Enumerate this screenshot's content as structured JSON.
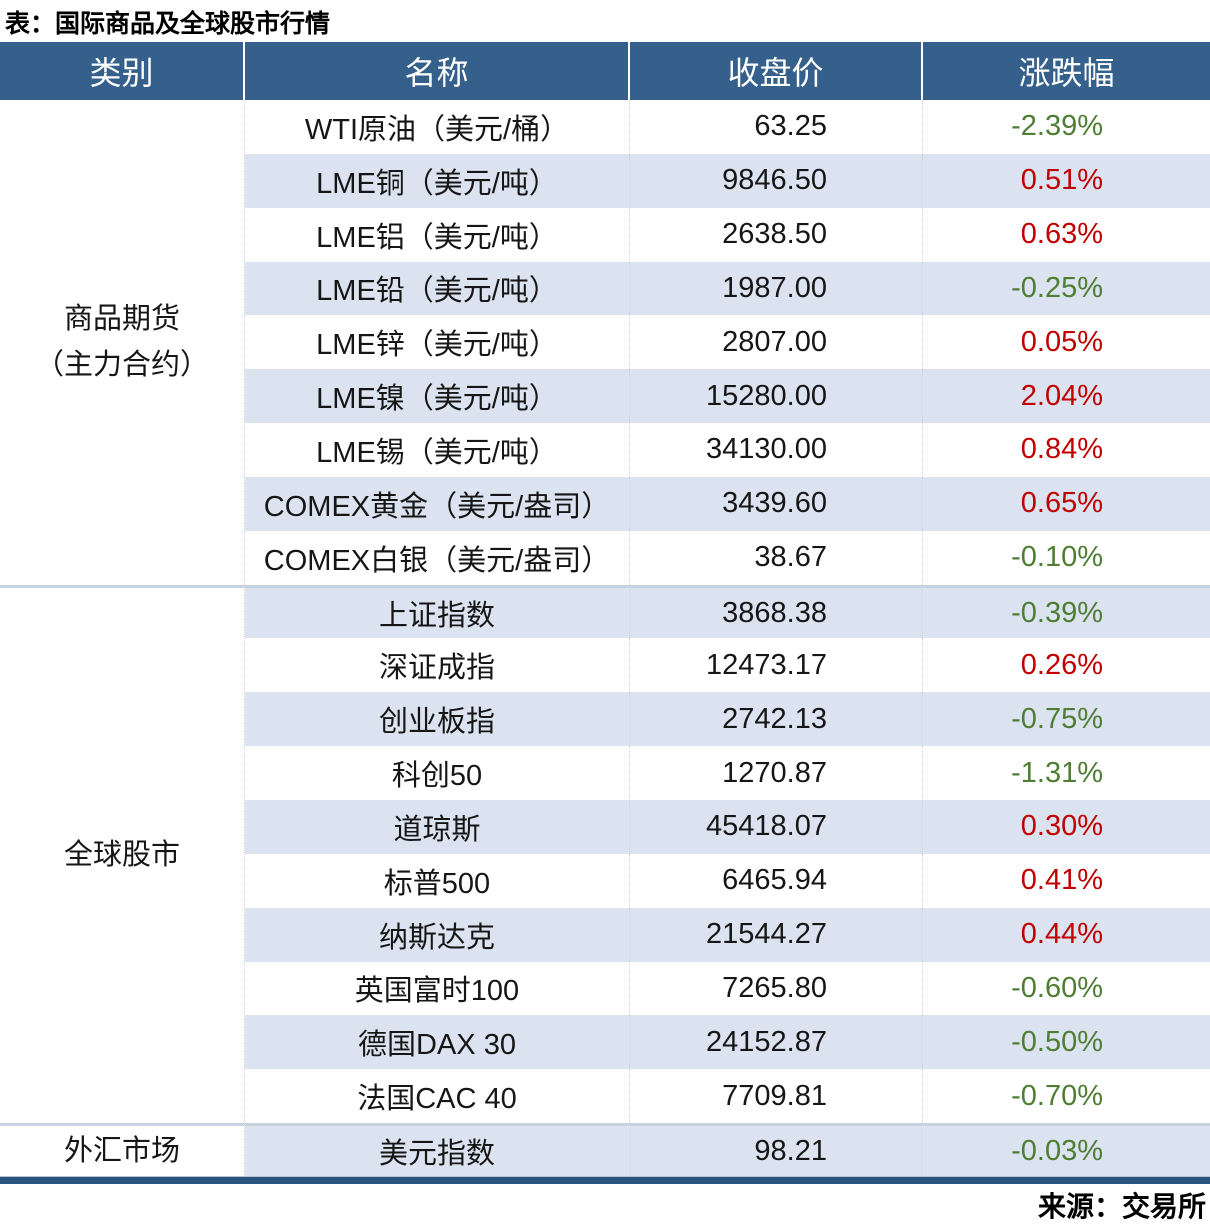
{
  "title": "表：国际商品及全球股市行情",
  "source": "来源：交易所",
  "columns": [
    "类别",
    "名称",
    "收盘价",
    "涨跌幅"
  ],
  "colors": {
    "header_bg": "#35608C",
    "stripe": "#DAE3EF",
    "up_red": "#C00000",
    "down_green": "#4E7D33",
    "bottom_bar": "#2B5480",
    "group_separator": "#C7D2E0"
  },
  "chart_data": {
    "type": "table",
    "title": "表：国际商品及全球股市行情",
    "groups": [
      {
        "category_lines": [
          "商品期货",
          "（主力合约）"
        ],
        "rows": [
          {
            "name": "WTI原油（美元/桶）",
            "close": "63.25",
            "change": "-2.39%",
            "direction": "down"
          },
          {
            "name": "LME铜（美元/吨）",
            "close": "9846.50",
            "change": "0.51%",
            "direction": "up"
          },
          {
            "name": "LME铝（美元/吨）",
            "close": "2638.50",
            "change": "0.63%",
            "direction": "up"
          },
          {
            "name": "LME铅（美元/吨）",
            "close": "1987.00",
            "change": "-0.25%",
            "direction": "down"
          },
          {
            "name": "LME锌（美元/吨）",
            "close": "2807.00",
            "change": "0.05%",
            "direction": "up"
          },
          {
            "name": "LME镍（美元/吨）",
            "close": "15280.00",
            "change": "2.04%",
            "direction": "up"
          },
          {
            "name": "LME锡（美元/吨）",
            "close": "34130.00",
            "change": "0.84%",
            "direction": "up"
          },
          {
            "name": "COMEX黄金（美元/盎司）",
            "close": "3439.60",
            "change": "0.65%",
            "direction": "up"
          },
          {
            "name": "COMEX白银（美元/盎司）",
            "close": "38.67",
            "change": "-0.10%",
            "direction": "down"
          }
        ]
      },
      {
        "category_lines": [
          "全球股市"
        ],
        "rows": [
          {
            "name": "上证指数",
            "close": "3868.38",
            "change": "-0.39%",
            "direction": "down"
          },
          {
            "name": "深证成指",
            "close": "12473.17",
            "change": "0.26%",
            "direction": "up"
          },
          {
            "name": "创业板指",
            "close": "2742.13",
            "change": "-0.75%",
            "direction": "down"
          },
          {
            "name": "科创50",
            "close": "1270.87",
            "change": "-1.31%",
            "direction": "down"
          },
          {
            "name": "道琼斯",
            "close": "45418.07",
            "change": "0.30%",
            "direction": "up"
          },
          {
            "name": "标普500",
            "close": "6465.94",
            "change": "0.41%",
            "direction": "up"
          },
          {
            "name": "纳斯达克",
            "close": "21544.27",
            "change": "0.44%",
            "direction": "up"
          },
          {
            "name": "英国富时100",
            "close": "7265.80",
            "change": "-0.60%",
            "direction": "down"
          },
          {
            "name": "德国DAX 30",
            "close": "24152.87",
            "change": "-0.50%",
            "direction": "down"
          },
          {
            "name": "法国CAC 40",
            "close": "7709.81",
            "change": "-0.70%",
            "direction": "down"
          }
        ]
      },
      {
        "category_lines": [
          "外汇市场"
        ],
        "rows": [
          {
            "name": "美元指数",
            "close": "98.21",
            "change": "-0.03%",
            "direction": "down"
          }
        ]
      }
    ]
  }
}
